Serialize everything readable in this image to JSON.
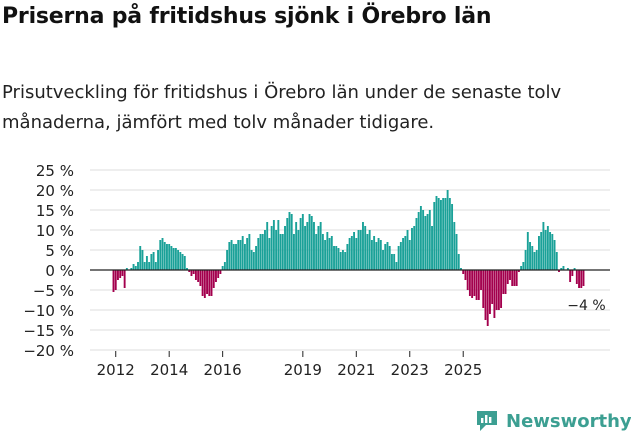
{
  "title": "Priserna på fritidshus sjönk i Örebro län",
  "subtitle": "Prisutveckling för fritidshus i Örebro län under de senaste tolv månaderna, jämfört med tolv månader tidigare.",
  "brand": {
    "name": "Newsworthy"
  },
  "colors": {
    "positive": "#1aa198",
    "negative": "#a3004d",
    "grid": "#dddddd",
    "axis": "#222222",
    "brand": "#3c9f92"
  },
  "chart_data": {
    "type": "bar",
    "title": "Priserna på fritidshus sjönk i Örebro län",
    "ylabel": "",
    "xlabel": "",
    "ylim": [
      -20,
      25
    ],
    "yticks": [
      25,
      20,
      15,
      10,
      5,
      0,
      -5,
      -10,
      -15,
      -20
    ],
    "ytick_labels": [
      "25 %",
      "20 %",
      "15 %",
      "10 %",
      "5 %",
      "0 %",
      "−5 %",
      "−10 %",
      "−15 %",
      "−20 %"
    ],
    "x_start": {
      "year": 2011,
      "month": 12
    },
    "x_end": {
      "year": 2026,
      "month": 6
    },
    "xticks": [
      2012,
      2014,
      2016,
      2019,
      2021,
      2023,
      2025
    ],
    "annotation": {
      "text": "−4 %",
      "value": -4
    },
    "values": [
      -5.5,
      -5,
      -2.5,
      -2,
      -1.5,
      -4.5,
      0.5,
      0,
      0.5,
      1.5,
      1,
      2,
      6,
      5,
      2,
      3.5,
      2,
      4,
      4.5,
      2,
      5,
      7.5,
      8,
      7,
      6.5,
      6.5,
      6,
      5.5,
      5.5,
      5,
      4.5,
      4,
      3.5,
      0.5,
      -0.5,
      -1.5,
      -1,
      -2.5,
      -3,
      -4,
      -6.5,
      -7,
      -6,
      -6.5,
      -6.5,
      -4.5,
      -3,
      -2,
      -1,
      1,
      2,
      5,
      7,
      7.5,
      6.5,
      6.5,
      7.5,
      7.5,
      8.5,
      6.5,
      8,
      9,
      5,
      4.5,
      6,
      8,
      9,
      9,
      10,
      12,
      8,
      11,
      12.5,
      10,
      12.5,
      9,
      9,
      11,
      13,
      14.5,
      14,
      9,
      12,
      10,
      13,
      14,
      11,
      12,
      14,
      13.5,
      12,
      9,
      11,
      12,
      9,
      7.5,
      9.5,
      8,
      8.5,
      6,
      6,
      5.5,
      4.5,
      5,
      4.5,
      6.5,
      8,
      8.5,
      9.5,
      8,
      10,
      10,
      12,
      11,
      9,
      10,
      7.5,
      8.5,
      7,
      8,
      7.5,
      5,
      6.5,
      7,
      6,
      4,
      4,
      2,
      6,
      7,
      8,
      8.5,
      10,
      7.5,
      10.5,
      11,
      13,
      14.5,
      16,
      15,
      13.5,
      14,
      15,
      11,
      17,
      18.5,
      18,
      17.5,
      18,
      18,
      20,
      18,
      16.5,
      12,
      9,
      4,
      0.5,
      -1,
      -2.5,
      -5,
      -6.5,
      -7,
      -6.5,
      -7.5,
      -7.5,
      -5,
      -9.5,
      -12.5,
      -14,
      -11,
      -8.5,
      -12,
      -10,
      -10,
      -9.5,
      -6,
      -6,
      -3.5,
      -2.5,
      -4,
      -4,
      -4,
      -0.5,
      1,
      2,
      5,
      9.5,
      7,
      6,
      4.5,
      5,
      8.5,
      9.5,
      12,
      10,
      11,
      9.5,
      9,
      7.5,
      4.5,
      -0.5,
      0.5,
      1,
      0,
      0.5,
      -3,
      -1.5,
      0.5,
      -3.5,
      -4.5,
      -4.5,
      -4
    ]
  }
}
